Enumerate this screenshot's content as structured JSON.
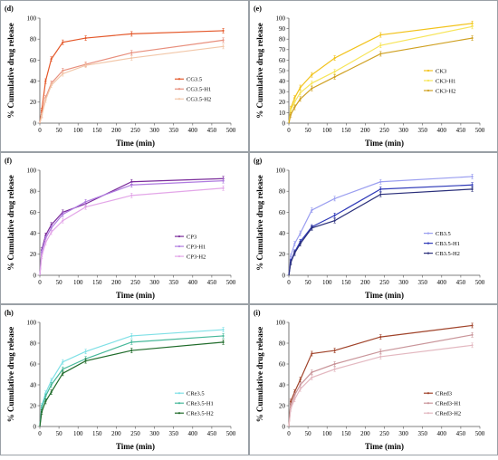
{
  "chart_data": [
    {
      "type": "line",
      "panel_label": "(d)",
      "xlabel": "Time (min)",
      "ylabel": "% Cumulative drug release",
      "xlim": [
        0,
        500
      ],
      "ylim": [
        0,
        100
      ],
      "xticks": [
        "0",
        "50",
        "100",
        "150",
        "200",
        "250",
        "300",
        "350",
        "400",
        "450",
        "500"
      ],
      "yticks": [
        "0",
        "20",
        "40",
        "60",
        "80",
        "100"
      ],
      "legend_position": "right",
      "x": [
        0,
        5,
        15,
        30,
        60,
        120,
        240,
        480
      ],
      "series": [
        {
          "name": "CG3.5",
          "color": "#e4582a",
          "values": [
            0,
            12,
            40,
            61,
            77,
            81,
            85,
            88
          ]
        },
        {
          "name": "CG3.5-H1",
          "color": "#e88f7d",
          "values": [
            0,
            8,
            24,
            38,
            50,
            56,
            67,
            79
          ]
        },
        {
          "name": "CG3.5-H2",
          "color": "#f2c7a9",
          "values": [
            0,
            7,
            22,
            36,
            47,
            55,
            62,
            73
          ]
        }
      ]
    },
    {
      "type": "line",
      "panel_label": "(e)",
      "xlabel": "Time (min)",
      "ylabel": "% Cumulative drug release",
      "xlim": [
        0,
        500
      ],
      "ylim": [
        0,
        100
      ],
      "xticks": [
        "0",
        "50",
        "100",
        "150",
        "200",
        "250",
        "300",
        "350",
        "400",
        "450",
        "500"
      ],
      "yticks": [
        "0",
        "10",
        "20",
        "30",
        "40",
        "50",
        "60",
        "70",
        "80",
        "90",
        "100"
      ],
      "legend_position": "right",
      "x": [
        0,
        5,
        15,
        30,
        60,
        120,
        240,
        480
      ],
      "series": [
        {
          "name": "CK3",
          "color": "#f2c21a",
          "values": [
            0,
            14,
            24,
            34,
            46,
            62,
            84,
            95
          ]
        },
        {
          "name": "CK3-H1",
          "color": "#f7e55a",
          "values": [
            0,
            12,
            20,
            29,
            38,
            49,
            74,
            92
          ]
        },
        {
          "name": "CK3-H2",
          "color": "#cfa021",
          "values": [
            0,
            8,
            15,
            23,
            33,
            44,
            66,
            81
          ]
        }
      ]
    },
    {
      "type": "line",
      "panel_label": "(f)",
      "xlabel": "Time (min)",
      "ylabel": "% Cumulative drug release",
      "xlim": [
        0,
        500
      ],
      "ylim": [
        0,
        100
      ],
      "xticks": [
        "0",
        "50",
        "100",
        "150",
        "200",
        "250",
        "300",
        "350",
        "400",
        "450",
        "500"
      ],
      "yticks": [
        "0",
        "20",
        "40",
        "60",
        "80",
        "100"
      ],
      "legend_position": "right",
      "x": [
        0,
        5,
        15,
        30,
        60,
        120,
        240,
        480
      ],
      "series": [
        {
          "name": "CP3",
          "color": "#7a2b9a",
          "values": [
            0,
            24,
            38,
            48,
            60,
            68,
            89,
            92
          ]
        },
        {
          "name": "CP3-H1",
          "color": "#b07ce0",
          "values": [
            0,
            22,
            35,
            45,
            58,
            70,
            86,
            90
          ]
        },
        {
          "name": "CP3-H2",
          "color": "#e3a6e8",
          "values": [
            0,
            18,
            31,
            41,
            52,
            65,
            76,
            83
          ]
        }
      ]
    },
    {
      "type": "line",
      "panel_label": "(g)",
      "xlabel": "Time (min)",
      "ylabel": "% Cumulative drug release",
      "xlim": [
        0,
        500
      ],
      "ylim": [
        0,
        100
      ],
      "xticks": [
        "0",
        "50",
        "100",
        "150",
        "200",
        "250",
        "300",
        "350",
        "400",
        "450",
        "500"
      ],
      "yticks": [
        "0",
        "20",
        "40",
        "60",
        "80",
        "100"
      ],
      "legend_position": "right",
      "x": [
        0,
        5,
        15,
        30,
        60,
        120,
        240,
        480
      ],
      "series": [
        {
          "name": "CB3.5",
          "color": "#9a9ef0",
          "values": [
            0,
            18,
            30,
            40,
            62,
            73,
            89,
            94
          ]
        },
        {
          "name": "CB3.5-H1",
          "color": "#2f3ab8",
          "values": [
            0,
            13,
            22,
            32,
            46,
            57,
            82,
            86
          ]
        },
        {
          "name": "CB3.5-H2",
          "color": "#2a2f7a",
          "values": [
            0,
            12,
            21,
            30,
            45,
            52,
            77,
            82
          ]
        }
      ]
    },
    {
      "type": "line",
      "panel_label": "(h)",
      "xlabel": "Time (min)",
      "ylabel": "% Cumulative drug release",
      "xlim": [
        0,
        500
      ],
      "ylim": [
        0,
        100
      ],
      "xticks": [
        "0",
        "50",
        "100",
        "150",
        "200",
        "250",
        "300",
        "350",
        "400",
        "450",
        "500"
      ],
      "yticks": [
        "0",
        "20",
        "40",
        "60",
        "80",
        "100"
      ],
      "legend_position": "right",
      "x": [
        0,
        5,
        15,
        30,
        60,
        120,
        240,
        480
      ],
      "series": [
        {
          "name": "CRe3.5",
          "color": "#7fe0e6",
          "values": [
            0,
            20,
            32,
            44,
            62,
            72,
            87,
            93
          ]
        },
        {
          "name": "CRe3.5-H1",
          "color": "#46b89a",
          "values": [
            0,
            18,
            29,
            40,
            55,
            65,
            81,
            87
          ]
        },
        {
          "name": "CRe3.5-H2",
          "color": "#1f6b2a",
          "values": [
            0,
            14,
            24,
            33,
            51,
            63,
            73,
            81
          ]
        }
      ]
    },
    {
      "type": "line",
      "panel_label": "(i)",
      "xlabel": "Time (min)",
      "ylabel": "% Cumulative drug release",
      "xlim": [
        0,
        500
      ],
      "ylim": [
        0,
        100
      ],
      "xticks": [
        "0",
        "50",
        "100",
        "150",
        "200",
        "250",
        "300",
        "350",
        "400",
        "450",
        "500"
      ],
      "yticks": [
        "0",
        "20",
        "40",
        "60",
        "80",
        "100"
      ],
      "legend_position": "right",
      "x": [
        0,
        5,
        15,
        30,
        60,
        120,
        240,
        480
      ],
      "series": [
        {
          "name": "CRed3",
          "color": "#a0432a",
          "values": [
            0,
            24,
            33,
            45,
            70,
            73,
            86,
            97
          ]
        },
        {
          "name": "CRed3-H1",
          "color": "#c9959a",
          "values": [
            0,
            20,
            30,
            40,
            52,
            60,
            72,
            88
          ]
        },
        {
          "name": "CRed3-H2",
          "color": "#e3b8c0",
          "values": [
            0,
            17,
            26,
            36,
            47,
            55,
            67,
            78
          ]
        }
      ]
    }
  ]
}
